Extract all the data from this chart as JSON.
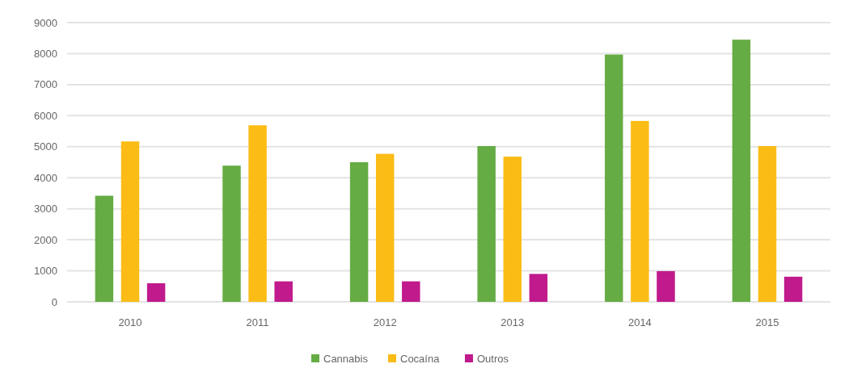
{
  "chart_data": {
    "type": "bar",
    "categories": [
      "2010",
      "2011",
      "2012",
      "2013",
      "2014",
      "2015"
    ],
    "series": [
      {
        "name": "Cannabis",
        "color": "#66ac44",
        "values": [
          3420,
          4390,
          4500,
          5020,
          7970,
          8450
        ]
      },
      {
        "name": "Cocaína",
        "color": "#fbbc15",
        "values": [
          5170,
          5690,
          4770,
          4680,
          5830,
          5020
        ]
      },
      {
        "name": "Outros",
        "color": "#c01a8c",
        "values": [
          600,
          660,
          660,
          900,
          990,
          810
        ]
      }
    ],
    "ylim": [
      0,
      9000
    ],
    "yticks": [
      0,
      1000,
      2000,
      3000,
      4000,
      5000,
      6000,
      7000,
      8000,
      9000
    ],
    "grid": "y",
    "legend": "bottom"
  }
}
